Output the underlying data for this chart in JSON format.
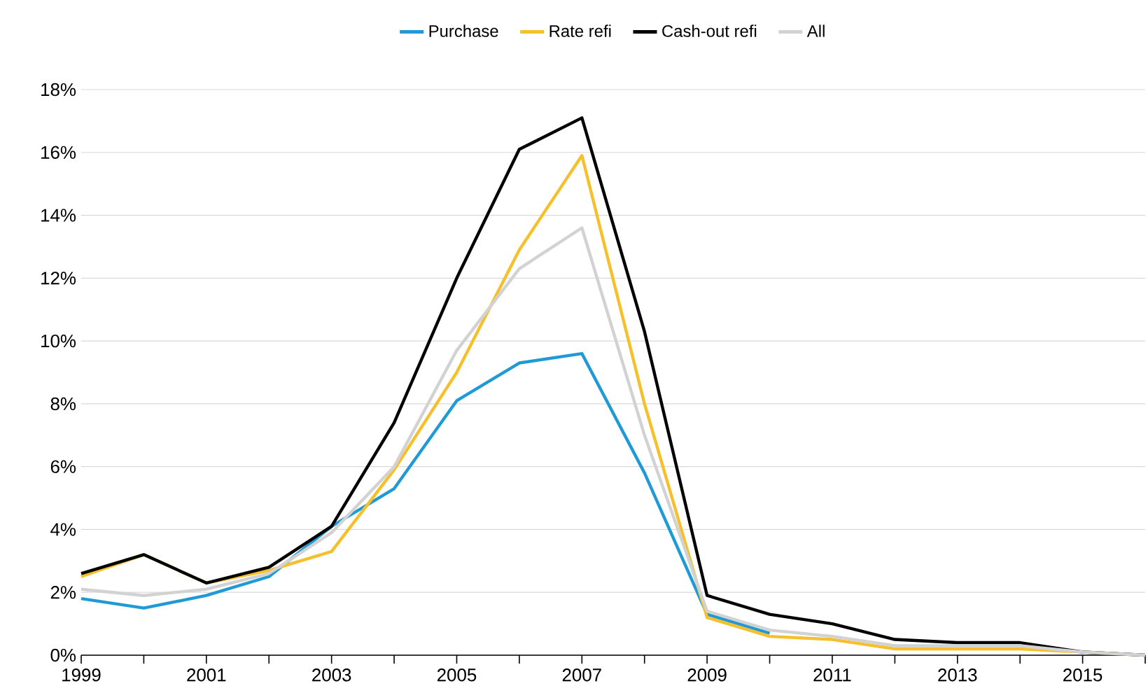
{
  "chart_data": {
    "type": "line",
    "x": [
      1999,
      2000,
      2001,
      2002,
      2003,
      2004,
      2005,
      2006,
      2007,
      2008,
      2009,
      2010,
      2011,
      2012,
      2013,
      2014,
      2015,
      2016
    ],
    "series": [
      {
        "name": "Purchase",
        "color": "#1f9ad6",
        "values": [
          1.8,
          1.5,
          1.9,
          2.5,
          4.1,
          5.3,
          8.1,
          9.3,
          9.6,
          5.8,
          1.3,
          0.7,
          null,
          null,
          null,
          null,
          null,
          null
        ]
      },
      {
        "name": "Rate refi",
        "color": "#f5c02c",
        "values": [
          2.5,
          3.2,
          2.3,
          2.7,
          3.3,
          5.9,
          9.0,
          12.9,
          15.9,
          8.0,
          1.2,
          0.6,
          0.5,
          0.2,
          0.2,
          0.2,
          0.1,
          0.0
        ]
      },
      {
        "name": "Cash-out refi",
        "color": "#000000",
        "values": [
          2.6,
          3.2,
          2.3,
          2.8,
          4.1,
          7.4,
          12.0,
          16.1,
          17.1,
          10.3,
          1.9,
          1.3,
          1.0,
          0.5,
          0.4,
          0.4,
          0.1,
          0.0
        ]
      },
      {
        "name": "All",
        "color": "#d2d2d2",
        "values": [
          2.1,
          1.9,
          2.1,
          2.6,
          3.9,
          6.0,
          9.7,
          12.3,
          13.6,
          7.0,
          1.4,
          0.8,
          0.6,
          0.3,
          0.3,
          0.3,
          0.1,
          0.0
        ]
      }
    ],
    "xlim": [
      1999,
      2016
    ],
    "xticks": [
      1999,
      {
        "value": 2000,
        "label": null
      },
      2001,
      {
        "value": 2002,
        "label": null
      },
      2003,
      {
        "value": 2004,
        "label": null
      },
      2005,
      {
        "value": 2006,
        "label": null
      },
      2007,
      {
        "value": 2008,
        "label": null
      },
      2009,
      {
        "value": 2010,
        "label": null
      },
      2011,
      {
        "value": 2012,
        "label": null
      },
      2013,
      {
        "value": 2014,
        "label": null
      },
      2015,
      {
        "value": 2016,
        "label": null
      }
    ],
    "ylim": [
      0,
      18
    ],
    "yticks": [
      {
        "value": 0,
        "label": "0%"
      },
      {
        "value": 2,
        "label": "2%"
      },
      {
        "value": 4,
        "label": "4%"
      },
      {
        "value": 6,
        "label": "6%"
      },
      {
        "value": 8,
        "label": "8%"
      },
      {
        "value": 10,
        "label": "10%"
      },
      {
        "value": 12,
        "label": "12%"
      },
      {
        "value": 14,
        "label": "14%"
      },
      {
        "value": 16,
        "label": "16%"
      },
      {
        "value": 18,
        "label": "18%"
      }
    ],
    "grid": "y",
    "legend": "top",
    "marker": "none",
    "line_style": "solid"
  }
}
